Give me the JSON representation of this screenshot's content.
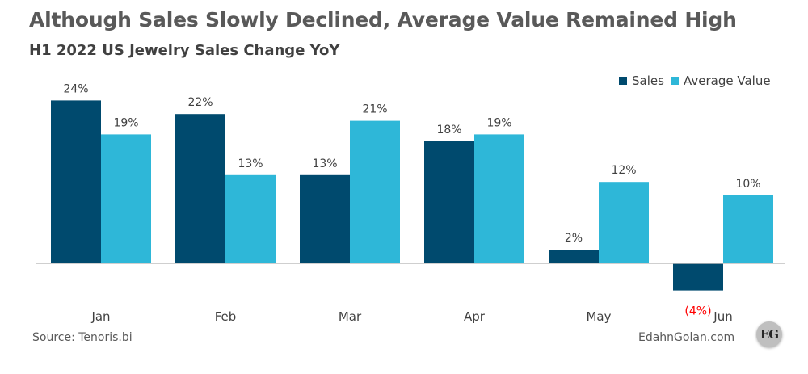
{
  "header": {
    "title": "Although Sales Slowly Declined, Average Value Remained High",
    "subtitle": "H1 2022 US Jewelry Sales Change YoY"
  },
  "footer": {
    "source": "Source: Tenoris.bi",
    "credit": "EdahnGolan.com",
    "logo_text": "EG"
  },
  "colors": {
    "sales": "#004a6e",
    "average_value": "#2eb7d8",
    "negative_label": "#ff0000",
    "text": "#404040",
    "axis": "#bfbfbf"
  },
  "chart_data": {
    "type": "bar",
    "title": "Although Sales Slowly Declined, Average Value Remained High",
    "subtitle": "H1 2022 US Jewelry Sales Change YoY",
    "categories": [
      "Jan",
      "Feb",
      "Mar",
      "Apr",
      "May",
      "Jun"
    ],
    "series": [
      {
        "name": "Sales",
        "values": [
          24,
          22,
          13,
          18,
          2,
          -4
        ],
        "labels": [
          "24%",
          "22%",
          "13%",
          "18%",
          "2%",
          "(4%)"
        ]
      },
      {
        "name": "Average Value",
        "values": [
          19,
          13,
          21,
          19,
          12,
          10
        ],
        "labels": [
          "19%",
          "13%",
          "21%",
          "19%",
          "12%",
          "10%"
        ]
      }
    ],
    "ylim": [
      -4,
      24
    ],
    "grid": false,
    "legend": "top-right"
  }
}
